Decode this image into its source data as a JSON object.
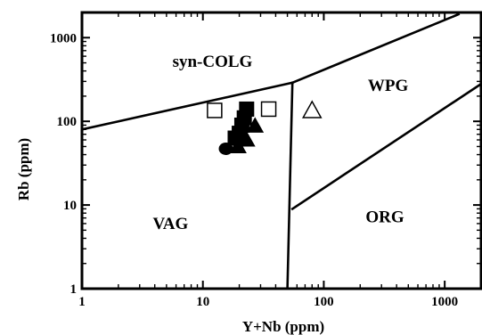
{
  "chart_data": {
    "type": "scatter",
    "title": "",
    "xlabel": "Y+Nb (ppm)",
    "ylabel": "Rb (ppm)",
    "xscale": "log",
    "yscale": "log",
    "xlim": [
      1,
      2000
    ],
    "ylim": [
      1,
      2000
    ],
    "xticks": [
      {
        "value": 1,
        "label": "1"
      },
      {
        "value": 10,
        "label": "10"
      },
      {
        "value": 100,
        "label": "100"
      },
      {
        "value": 1000,
        "label": "1000"
      }
    ],
    "yticks": [
      {
        "value": 1,
        "label": "1"
      },
      {
        "value": 10,
        "label": "10"
      },
      {
        "value": 100,
        "label": "100"
      },
      {
        "value": 1000,
        "label": "1000"
      }
    ],
    "regions": [
      {
        "name": "syn-COLG",
        "x": 12,
        "y": 450
      },
      {
        "name": "WPG",
        "x": 340,
        "y": 230
      },
      {
        "name": "VAG",
        "x": 5.4,
        "y": 5.2
      },
      {
        "name": "ORG",
        "x": 320,
        "y": 6.2
      }
    ],
    "boundaries": [
      {
        "name": "syn-COLG / VAG",
        "points": [
          [
            1,
            80
          ],
          [
            55,
            290
          ]
        ]
      },
      {
        "name": "syn-COLG / WPG",
        "points": [
          [
            55,
            290
          ],
          [
            1300,
            1900
          ]
        ]
      },
      {
        "name": "VAG / WPG+ORG",
        "points": [
          [
            55,
            290
          ],
          [
            50,
            1
          ]
        ]
      },
      {
        "name": "WPG / ORG",
        "points": [
          [
            55,
            9
          ],
          [
            2000,
            280
          ]
        ]
      }
    ],
    "series": [
      {
        "marker": "open-square",
        "points": [
          [
            12.5,
            135
          ],
          [
            35,
            140
          ]
        ]
      },
      {
        "marker": "open-triangle",
        "points": [
          [
            80,
            135
          ]
        ]
      },
      {
        "marker": "filled-square",
        "points": [
          [
            23,
            140
          ],
          [
            22,
            110
          ],
          [
            21,
            90
          ],
          [
            20,
            72
          ],
          [
            18.5,
            63
          ]
        ]
      },
      {
        "marker": "filled-triangle",
        "points": [
          [
            27,
            88
          ],
          [
            23,
            60
          ],
          [
            19.5,
            50
          ]
        ]
      },
      {
        "marker": "filled-circle",
        "points": [
          [
            15.5,
            47
          ]
        ]
      }
    ]
  }
}
